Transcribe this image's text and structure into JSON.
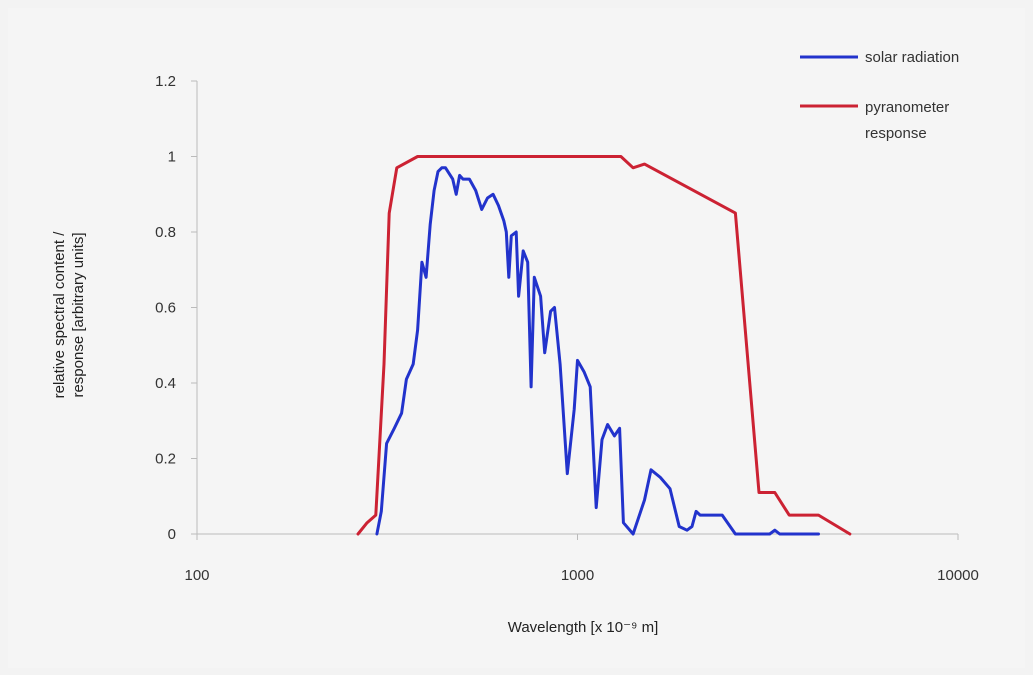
{
  "chart_data": {
    "type": "line",
    "x_scale": "log",
    "xlim": [
      100,
      10000
    ],
    "ylim": [
      0,
      1.2
    ],
    "xlabel": "Wavelength [x 10⁻⁹ m]",
    "ylabel_lines": [
      "relative spectral content /",
      "response [arbitrary units]"
    ],
    "x_ticks": [
      {
        "value": 100,
        "label": "100"
      },
      {
        "value": 1000,
        "label": "1000"
      },
      {
        "value": 10000,
        "label": "10000"
      }
    ],
    "y_ticks": [
      {
        "value": 0,
        "label": "0"
      },
      {
        "value": 0.2,
        "label": "0.2"
      },
      {
        "value": 0.4,
        "label": "0.4"
      },
      {
        "value": 0.6,
        "label": "0.6"
      },
      {
        "value": 0.8,
        "label": "0.8"
      },
      {
        "value": 1,
        "label": "1"
      },
      {
        "value": 1.2,
        "label": "1.2"
      }
    ],
    "grid": false,
    "legend_position": "top-right",
    "series": [
      {
        "name": "solar radiation",
        "color": "#2233cc",
        "points": [
          [
            297,
            0.0
          ],
          [
            305,
            0.06
          ],
          [
            315,
            0.24
          ],
          [
            330,
            0.28
          ],
          [
            345,
            0.32
          ],
          [
            355,
            0.41
          ],
          [
            370,
            0.45
          ],
          [
            380,
            0.54
          ],
          [
            390,
            0.72
          ],
          [
            400,
            0.68
          ],
          [
            410,
            0.82
          ],
          [
            420,
            0.91
          ],
          [
            430,
            0.96
          ],
          [
            440,
            0.97
          ],
          [
            450,
            0.97
          ],
          [
            470,
            0.94
          ],
          [
            480,
            0.9
          ],
          [
            490,
            0.95
          ],
          [
            500,
            0.94
          ],
          [
            520,
            0.94
          ],
          [
            540,
            0.91
          ],
          [
            560,
            0.86
          ],
          [
            580,
            0.89
          ],
          [
            600,
            0.9
          ],
          [
            620,
            0.87
          ],
          [
            640,
            0.83
          ],
          [
            650,
            0.8
          ],
          [
            660,
            0.68
          ],
          [
            670,
            0.79
          ],
          [
            690,
            0.8
          ],
          [
            700,
            0.63
          ],
          [
            720,
            0.75
          ],
          [
            740,
            0.72
          ],
          [
            755,
            0.39
          ],
          [
            770,
            0.68
          ],
          [
            800,
            0.63
          ],
          [
            820,
            0.48
          ],
          [
            850,
            0.59
          ],
          [
            870,
            0.6
          ],
          [
            900,
            0.45
          ],
          [
            940,
            0.16
          ],
          [
            980,
            0.33
          ],
          [
            1000,
            0.46
          ],
          [
            1040,
            0.43
          ],
          [
            1080,
            0.39
          ],
          [
            1120,
            0.07
          ],
          [
            1160,
            0.25
          ],
          [
            1200,
            0.29
          ],
          [
            1250,
            0.26
          ],
          [
            1290,
            0.28
          ],
          [
            1320,
            0.03
          ],
          [
            1400,
            0.0
          ],
          [
            1500,
            0.09
          ],
          [
            1560,
            0.17
          ],
          [
            1650,
            0.15
          ],
          [
            1750,
            0.12
          ],
          [
            1850,
            0.02
          ],
          [
            1940,
            0.01
          ],
          [
            2000,
            0.02
          ],
          [
            2050,
            0.06
          ],
          [
            2100,
            0.05
          ],
          [
            2200,
            0.05
          ],
          [
            2400,
            0.05
          ],
          [
            2600,
            0.0
          ],
          [
            3200,
            0.0
          ],
          [
            3300,
            0.01
          ],
          [
            3400,
            0.0
          ],
          [
            4300,
            0.0
          ]
        ]
      },
      {
        "name": "pyranometer response",
        "color": "#cc2233",
        "points": [
          [
            265,
            0.0
          ],
          [
            280,
            0.03
          ],
          [
            295,
            0.05
          ],
          [
            310,
            0.45
          ],
          [
            320,
            0.85
          ],
          [
            335,
            0.97
          ],
          [
            380,
            1.0
          ],
          [
            1300,
            1.0
          ],
          [
            1400,
            0.97
          ],
          [
            1500,
            0.98
          ],
          [
            2600,
            0.85
          ],
          [
            3000,
            0.11
          ],
          [
            3300,
            0.11
          ],
          [
            3600,
            0.05
          ],
          [
            4300,
            0.05
          ],
          [
            5200,
            0.0
          ]
        ]
      }
    ]
  }
}
